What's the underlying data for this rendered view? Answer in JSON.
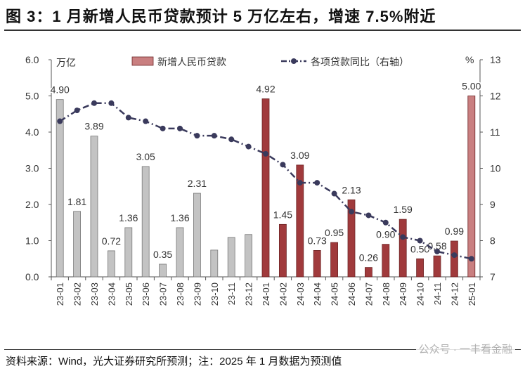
{
  "title": "图 3：1 月新增人民币贷款预计 5 万亿左右，增速 7.5%附近",
  "source": "资料来源：Wind，光大证券研究所预测；注：2025 年 1 月数据为预测值",
  "watermark": "公众号 · 一丰看金融",
  "colors": {
    "bar_2023": "#c3c3c3",
    "bar_2024": "#a03a3c",
    "bar_forecast": "#c97f80",
    "line": "#3a3a5c"
  },
  "chart_data": {
    "type": "bar",
    "ylabel_left": "万亿",
    "ylabel_right": "%",
    "ylim_left": [
      0,
      6
    ],
    "ylim_right": [
      7,
      13
    ],
    "yticks_left": [
      "0.0",
      "1.0",
      "2.0",
      "3.0",
      "4.0",
      "5.0",
      "6.0"
    ],
    "yticks_right": [
      "7",
      "8",
      "9",
      "10",
      "11",
      "12",
      "13"
    ],
    "grid": false,
    "legend_position": "top",
    "categories": [
      "23-01",
      "23-02",
      "23-03",
      "23-04",
      "23-05",
      "23-06",
      "23-07",
      "23-08",
      "23-09",
      "23-10",
      "23-11",
      "23-12",
      "24-01",
      "24-02",
      "24-03",
      "24-04",
      "24-05",
      "24-06",
      "24-07",
      "24-08",
      "24-09",
      "24-10",
      "24-11",
      "24-12",
      "25-01"
    ],
    "series": [
      {
        "name": "新增人民币贷款",
        "axis": "left",
        "type": "bar",
        "values": [
          4.9,
          1.81,
          3.89,
          0.72,
          1.36,
          3.05,
          0.35,
          1.36,
          2.31,
          0.74,
          1.09,
          1.17,
          4.92,
          1.45,
          3.09,
          0.73,
          0.95,
          2.13,
          0.26,
          0.9,
          1.59,
          0.5,
          0.58,
          0.99,
          5.0
        ],
        "labels": [
          "4.90",
          "1.81",
          "3.89",
          "0.72",
          "1.36",
          "3.05",
          "0.35",
          "1.36",
          "2.31",
          "",
          "",
          "",
          "4.92",
          "1.45",
          "3.09",
          "0.73",
          "0.95",
          "2.13",
          "0.26",
          "0.90",
          "1.59",
          "0.50",
          "0.58",
          "0.99",
          "5.00"
        ]
      },
      {
        "name": "各项贷款同比（右轴）",
        "axis": "right",
        "type": "line",
        "values": [
          11.3,
          11.6,
          11.8,
          11.8,
          11.4,
          11.3,
          11.1,
          11.1,
          10.9,
          10.9,
          10.8,
          10.6,
          10.4,
          10.1,
          9.6,
          9.6,
          9.3,
          8.8,
          8.7,
          8.5,
          8.1,
          8.0,
          7.7,
          7.6,
          7.5
        ]
      }
    ]
  }
}
